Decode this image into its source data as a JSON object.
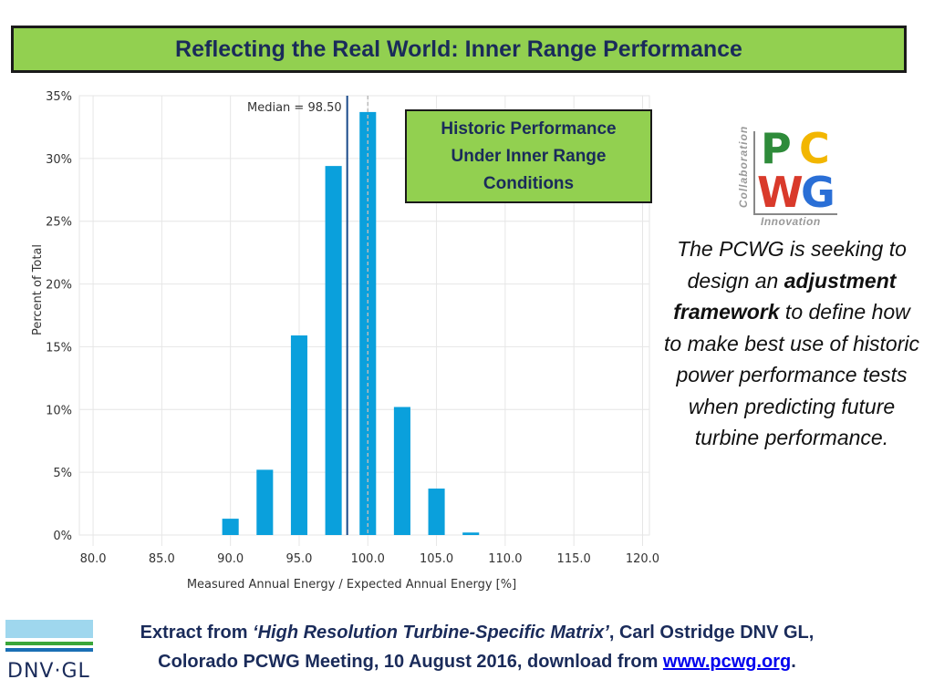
{
  "slide": {
    "title": "Reflecting the Real World: Inner Range Performance",
    "callout_lines": [
      "Historic Performance",
      "Under Inner Range",
      "Conditions"
    ],
    "logo": {
      "letter_p": "P",
      "letter_c": "C",
      "letter_w": "W",
      "letter_g": "G",
      "vertical_text": "Collaboration",
      "bottom_text": "Innovation",
      "colors": {
        "p": "#2e8b3a",
        "c": "#f2b600",
        "w": "#d93a2b",
        "g": "#2a6fd6"
      }
    },
    "side_text": {
      "part1": "The PCWG is seeking to design an ",
      "bold": "adjustment framework",
      "part2": " to define how to make best use of historic power performance tests when predicting future turbine performance."
    },
    "footer": {
      "line1_prefix": "Extract from ",
      "line1_italic": "‘High Resolution Turbine-Specific Matrix’",
      "line1_suffix": ", Carl Ostridge DNV GL,",
      "line2_prefix": "Colorado PCWG Meeting, 10 August 2016, download from ",
      "link": "www.pcwg.org",
      "line2_suffix": "."
    },
    "dnv_logo_text": "DNV·GL"
  },
  "chart_data": {
    "type": "bar",
    "x": [
      90.0,
      92.5,
      95.0,
      97.5,
      100.0,
      102.5,
      105.0,
      107.5
    ],
    "values": [
      1.3,
      5.2,
      15.9,
      29.4,
      33.7,
      10.2,
      3.7,
      0.2
    ],
    "xticks": [
      "80.0",
      "85.0",
      "90.0",
      "95.0",
      "100.0",
      "105.0",
      "110.0",
      "115.0",
      "120.0"
    ],
    "xtick_values": [
      80,
      85,
      90,
      95,
      100,
      105,
      110,
      115,
      120
    ],
    "yticks": [
      "0%",
      "5%",
      "10%",
      "15%",
      "20%",
      "25%",
      "30%",
      "35%"
    ],
    "ytick_values": [
      0,
      5,
      10,
      15,
      20,
      25,
      30,
      35
    ],
    "xlim": [
      79,
      120.5
    ],
    "ylim": [
      0,
      35
    ],
    "xlabel": "Measured Annual Energy / Expected Annual Energy [%]",
    "ylabel": "Percent of Total",
    "median": 98.5,
    "median_label": "Median = 98.50",
    "reference_line": 100,
    "bar_color": "#0aa0dc",
    "grid": true
  }
}
